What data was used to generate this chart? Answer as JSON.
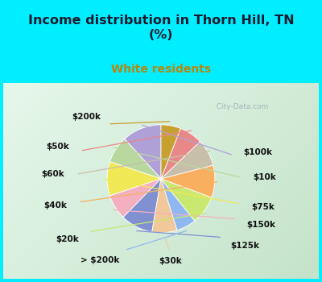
{
  "title": "Income distribution in Thorn Hill, TN\n(%)",
  "subtitle": "White residents",
  "title_color": "#1a1a2e",
  "subtitle_color": "#b8860b",
  "bg_cyan": "#00eeff",
  "chart_bg_left": "#e8f8f0",
  "chart_bg_right": "#c8eee8",
  "watermark": "City-Data.com",
  "labels": [
    "$100k",
    "$10k",
    "$75k",
    "$150k",
    "$125k",
    "$30k",
    "> $200k",
    "$20k",
    "$40k",
    "$60k",
    "$50k",
    "$200k"
  ],
  "values": [
    11.0,
    7.5,
    9.5,
    7.0,
    9.0,
    7.0,
    5.5,
    8.0,
    9.0,
    7.5,
    6.5,
    5.5
  ],
  "colors": [
    "#b0a0d8",
    "#b8d8a0",
    "#f0e855",
    "#f4b0c0",
    "#8090d0",
    "#f0c89a",
    "#90b8f0",
    "#c8e870",
    "#f8b060",
    "#c8bfaa",
    "#e88888",
    "#c8a030"
  ],
  "label_fontsize": 7.5,
  "title_fontsize": 11.5,
  "subtitle_fontsize": 10.0,
  "startangle": 90
}
